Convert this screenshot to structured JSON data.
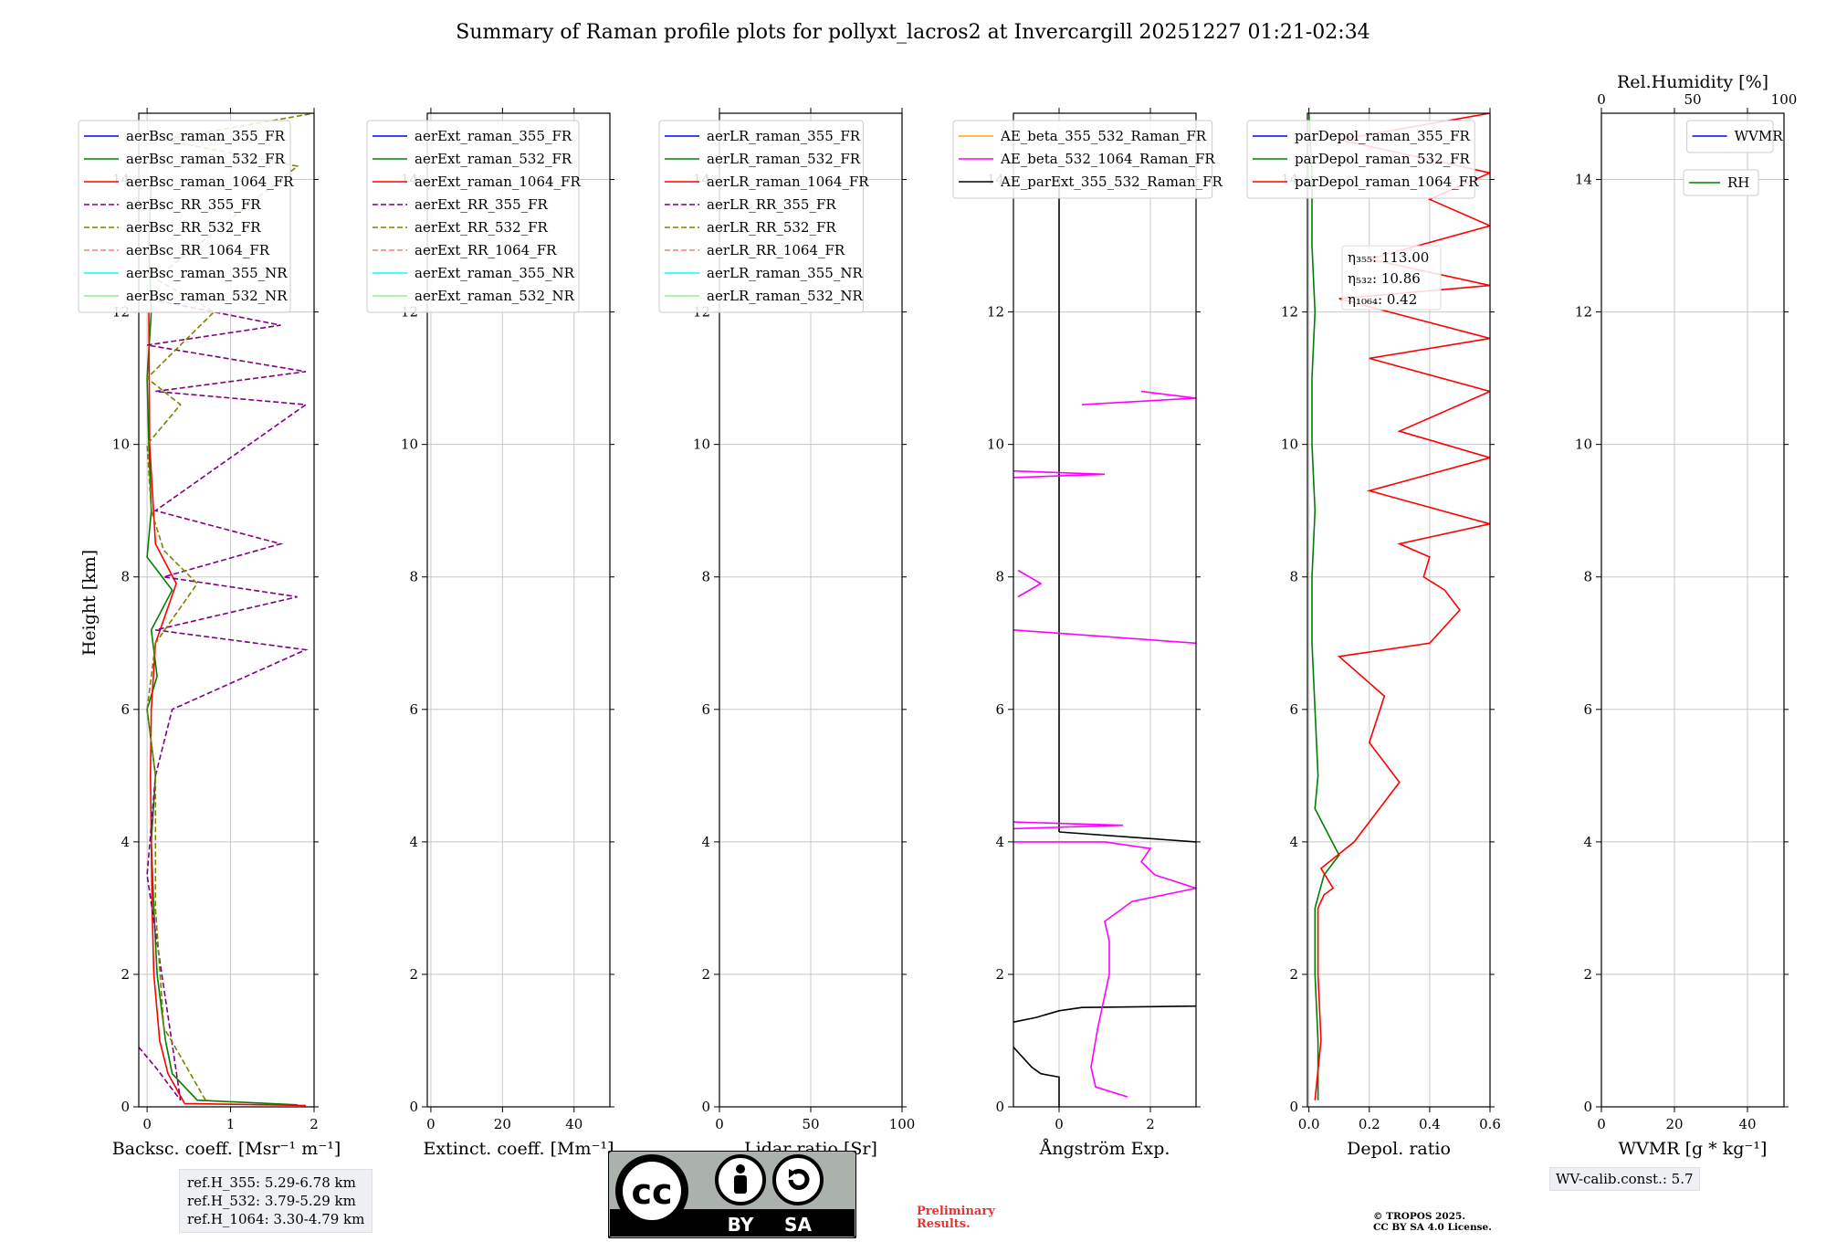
{
  "title": "Summary of Raman profile plots for pollyxt_lacros2 at Invercargill 20251227 01:21-02:34",
  "ylabel": "Height [km]",
  "colors": {
    "blue": "#0000ff",
    "green": "#008000",
    "red": "#ff0000",
    "purple": "#800080",
    "olive": "#808000",
    "salmon": "#fa8072",
    "cyan": "#00ffff",
    "lightgreen": "#90ee90",
    "orange": "#ffa500",
    "magenta": "#ff00ff",
    "black": "#000000"
  },
  "chart_data": [
    {
      "type": "line",
      "name": "backscatter",
      "xlabel": "Backsc. coeff. [Msr⁻¹ m⁻¹]",
      "xlim": [
        -0.1,
        2
      ],
      "ylim": [
        0,
        15
      ],
      "xticks": [
        {
          "v": 0,
          "label": "0"
        },
        {
          "v": 1,
          "label": "1"
        },
        {
          "v": 2,
          "label": "2"
        }
      ],
      "legend": [
        "aerBsc_raman_355_FR",
        "aerBsc_raman_532_FR",
        "aerBsc_raman_1064_FR",
        "aerBsc_RR_355_FR",
        "aerBsc_RR_532_FR",
        "aerBsc_RR_1064_FR",
        "aerBsc_raman_355_NR",
        "aerBsc_raman_532_NR"
      ],
      "legend_colors": [
        "blue",
        "green",
        "red",
        "purple",
        "olive",
        "salmon",
        "cyan",
        "lightgreen"
      ],
      "legend_dashed": [
        false,
        false,
        false,
        true,
        true,
        true,
        false,
        false
      ],
      "legend_position": "top-right",
      "series": [
        {
          "name": "aerBsc_raman_532_FR",
          "color": "green",
          "points": [
            [
              1.8,
              0.03
            ],
            [
              0.6,
              0.1
            ],
            [
              0.3,
              0.5
            ],
            [
              0.22,
              1.0
            ],
            [
              0.12,
              2.0
            ],
            [
              0.08,
              3.0
            ],
            [
              0.05,
              4.0
            ],
            [
              0.1,
              5.0
            ],
            [
              0.0,
              6.0
            ],
            [
              0.12,
              6.5
            ],
            [
              0.05,
              7.2
            ],
            [
              0.3,
              7.8
            ],
            [
              0.0,
              8.3
            ],
            [
              0.05,
              9.0
            ],
            [
              0.02,
              10.0
            ],
            [
              0.0,
              11.0
            ],
            [
              0.05,
              12.0
            ],
            [
              0.02,
              13.0
            ],
            [
              0.05,
              14.0
            ]
          ]
        },
        {
          "name": "aerBsc_raman_1064_FR",
          "color": "red",
          "points": [
            [
              1.9,
              0.02
            ],
            [
              0.45,
              0.05
            ],
            [
              0.25,
              0.5
            ],
            [
              0.15,
              1.0
            ],
            [
              0.08,
              2.0
            ],
            [
              0.06,
              3.0
            ],
            [
              0.05,
              4.0
            ],
            [
              0.04,
              5.0
            ],
            [
              0.05,
              6.0
            ],
            [
              0.1,
              7.0
            ],
            [
              0.35,
              7.9
            ],
            [
              0.1,
              8.5
            ],
            [
              0.03,
              10.0
            ],
            [
              0.02,
              12.0
            ]
          ]
        },
        {
          "name": "aerBsc_RR_355_FR",
          "color": "purple",
          "dashed": true,
          "points": [
            [
              -0.1,
              0.9
            ],
            [
              0.1,
              0.6
            ],
            [
              0.4,
              0.1
            ],
            [
              0.0,
              3.5
            ],
            [
              0.1,
              5.0
            ],
            [
              0.3,
              6.0
            ],
            [
              1.9,
              6.9
            ],
            [
              0.1,
              7.2
            ],
            [
              1.8,
              7.7
            ],
            [
              0.2,
              8.0
            ],
            [
              1.6,
              8.5
            ],
            [
              0.1,
              9.0
            ],
            [
              1.9,
              10.6
            ],
            [
              0.1,
              10.8
            ],
            [
              1.9,
              11.1
            ],
            [
              0.0,
              11.5
            ],
            [
              1.6,
              11.8
            ],
            [
              0.0,
              12.2
            ]
          ]
        },
        {
          "name": "aerBsc_RR_532_FR",
          "color": "olive",
          "dashed": true,
          "points": [
            [
              0.7,
              0.1
            ],
            [
              0.2,
              1.2
            ],
            [
              0.1,
              3.0
            ],
            [
              0.1,
              5.0
            ],
            [
              0.0,
              6.0
            ],
            [
              0.1,
              7.0
            ],
            [
              0.6,
              7.9
            ],
            [
              0.2,
              8.4
            ],
            [
              0.05,
              9.0
            ],
            [
              0.0,
              10.0
            ],
            [
              0.4,
              10.6
            ],
            [
              0.0,
              11.0
            ],
            [
              0.8,
              12.0
            ],
            [
              0.1,
              12.5
            ],
            [
              1.8,
              14.2
            ],
            [
              0.2,
              14.6
            ],
            [
              2.0,
              15.0
            ]
          ]
        }
      ]
    },
    {
      "type": "line",
      "name": "extinction",
      "xlabel": "Extinct. coeff. [Mm⁻¹]",
      "xlim": [
        -1,
        50
      ],
      "ylim": [
        0,
        15
      ],
      "xticks": [
        {
          "v": 0,
          "label": "0"
        },
        {
          "v": 20,
          "label": "20"
        },
        {
          "v": 40,
          "label": "40"
        }
      ],
      "legend": [
        "aerExt_raman_355_FR",
        "aerExt_raman_532_FR",
        "aerExt_raman_1064_FR",
        "aerExt_RR_355_FR",
        "aerExt_RR_532_FR",
        "aerExt_RR_1064_FR",
        "aerExt_raman_355_NR",
        "aerExt_raman_532_NR"
      ],
      "legend_colors": [
        "blue",
        "green",
        "red",
        "purple",
        "olive",
        "salmon",
        "cyan",
        "lightgreen"
      ],
      "legend_dashed": [
        false,
        false,
        false,
        true,
        true,
        true,
        false,
        false
      ],
      "legend_position": "top-right",
      "series": []
    },
    {
      "type": "line",
      "name": "lidar_ratio",
      "xlabel": "Lidar ratio [Sr]",
      "xlim": [
        0,
        100
      ],
      "ylim": [
        0,
        15
      ],
      "xticks": [
        {
          "v": 0,
          "label": "0"
        },
        {
          "v": 50,
          "label": "50"
        },
        {
          "v": 100,
          "label": "100"
        }
      ],
      "legend": [
        "aerLR_raman_355_FR",
        "aerLR_raman_532_FR",
        "aerLR_raman_1064_FR",
        "aerLR_RR_355_FR",
        "aerLR_RR_532_FR",
        "aerLR_RR_1064_FR",
        "aerLR_raman_355_NR",
        "aerLR_raman_532_NR"
      ],
      "legend_colors": [
        "blue",
        "green",
        "red",
        "purple",
        "olive",
        "salmon",
        "cyan",
        "lightgreen"
      ],
      "legend_dashed": [
        false,
        false,
        false,
        true,
        true,
        true,
        false,
        false
      ],
      "legend_position": "top-right",
      "series": []
    },
    {
      "type": "line",
      "name": "angstrom",
      "xlabel": "Ångström Exp.",
      "xlim": [
        -1,
        3
      ],
      "ylim": [
        0,
        15
      ],
      "xticks": [
        {
          "v": 0,
          "label": "0"
        },
        {
          "v": 2,
          "label": "2"
        }
      ],
      "legend": [
        "AE_beta_355_532_Raman_FR",
        "AE_beta_532_1064_Raman_FR",
        "AE_parExt_355_532_Raman_FR"
      ],
      "legend_colors": [
        "orange",
        "magenta",
        "black"
      ],
      "legend_dashed": [
        false,
        false,
        false
      ],
      "legend_position": "top-right",
      "series": [
        {
          "name": "AE_parExt_355_532_Raman_FR",
          "color": "black",
          "points": [
            [
              -1,
              0.9
            ],
            [
              -0.6,
              0.6
            ],
            [
              -0.4,
              0.5
            ],
            [
              0,
              0.45
            ],
            [
              0,
              0
            ],
            [
              0,
              0.45
            ]
          ]
        },
        {
          "name": "AE_parExt_355_532_Raman_FR_b",
          "color": "black",
          "points": [
            [
              -1,
              1.28
            ],
            [
              -0.5,
              1.35
            ],
            [
              0,
              1.45
            ],
            [
              0.5,
              1.5
            ],
            [
              3,
              1.52
            ]
          ]
        },
        {
          "name": "AE_parExt_355_532_Raman_FR_c",
          "color": "black",
          "points": [
            [
              0,
              4.15
            ],
            [
              3,
              4.0
            ]
          ]
        },
        {
          "name": "AE_parExt_355_532_Raman_FR_d",
          "color": "black",
          "points": [
            [
              0,
              4.15
            ],
            [
              0,
              14.0
            ]
          ]
        },
        {
          "name": "AE_beta_532_1064_Raman_FR",
          "color": "magenta",
          "points": [
            [
              1.5,
              0.15
            ],
            [
              0.8,
              0.3
            ],
            [
              0.7,
              0.6
            ],
            [
              0.85,
              1.2
            ],
            [
              1.1,
              2.0
            ],
            [
              1.1,
              2.5
            ],
            [
              1.0,
              2.8
            ],
            [
              1.6,
              3.1
            ],
            [
              3.0,
              3.3
            ],
            [
              2.1,
              3.5
            ],
            [
              1.8,
              3.7
            ],
            [
              2.0,
              3.9
            ],
            [
              1.0,
              4.0
            ],
            [
              -1,
              4.0
            ]
          ]
        },
        {
          "name": "AE_beta_532_1064_Raman_FR_b",
          "color": "magenta",
          "points": [
            [
              -1,
              4.2
            ],
            [
              1.4,
              4.25
            ],
            [
              -1,
              4.3
            ]
          ]
        },
        {
          "name": "AE_beta_532_1064_Raman_FR_c",
          "color": "magenta",
          "points": [
            [
              -1,
              7.2
            ],
            [
              3,
              7.0
            ]
          ]
        },
        {
          "name": "AE_beta_532_1064_Raman_FR_d",
          "color": "magenta",
          "points": [
            [
              -0.9,
              7.7
            ],
            [
              -0.4,
              7.9
            ],
            [
              -0.9,
              8.1
            ]
          ]
        },
        {
          "name": "AE_beta_532_1064_Raman_FR_e",
          "color": "magenta",
          "points": [
            [
              -1,
              9.5
            ],
            [
              1.0,
              9.55
            ],
            [
              -1,
              9.6
            ]
          ]
        },
        {
          "name": "AE_beta_532_1064_Raman_FR_f",
          "color": "magenta",
          "points": [
            [
              0.5,
              10.6
            ],
            [
              3.0,
              10.7
            ],
            [
              1.8,
              10.8
            ]
          ]
        }
      ]
    },
    {
      "type": "line",
      "name": "depol",
      "xlabel": "Depol. ratio",
      "xlim": [
        -0.005,
        0.6
      ],
      "ylim": [
        0,
        15
      ],
      "xticks": [
        {
          "v": 0,
          "label": "0.0"
        },
        {
          "v": 0.2,
          "label": "0.2"
        },
        {
          "v": 0.4,
          "label": "0.4"
        },
        {
          "v": 0.6,
          "label": "0.6"
        }
      ],
      "legend": [
        "parDepol_raman_355_FR",
        "parDepol_raman_532_FR",
        "parDepol_raman_1064_FR"
      ],
      "legend_colors": [
        "blue",
        "green",
        "red"
      ],
      "legend_dashed": [
        false,
        false,
        false
      ],
      "legend_position": "top-right",
      "eta_lines": [
        "η₃₅₅: 113.00",
        "η₅₃₂: 10.86",
        "η₁₀₆₄: 0.42"
      ],
      "series": [
        {
          "name": "parDepol_raman_532_FR",
          "color": "green",
          "points": [
            [
              0.03,
              0.1
            ],
            [
              0.03,
              1.0
            ],
            [
              0.02,
              2.0
            ],
            [
              0.02,
              3.0
            ],
            [
              0.05,
              3.5
            ],
            [
              0.1,
              3.8
            ],
            [
              0.02,
              4.5
            ],
            [
              0.03,
              5.0
            ],
            [
              0.02,
              6.0
            ],
            [
              0.01,
              7.0
            ],
            [
              0.01,
              8.0
            ],
            [
              0.02,
              9.0
            ],
            [
              0.01,
              10.0
            ],
            [
              0.01,
              11.0
            ],
            [
              0.02,
              12.0
            ],
            [
              0.01,
              13.0
            ],
            [
              0.01,
              14.0
            ],
            [
              0.0,
              15.0
            ]
          ]
        },
        {
          "name": "parDepol_raman_1064_FR",
          "color": "red",
          "points": [
            [
              0.02,
              0.1
            ],
            [
              0.04,
              1.0
            ],
            [
              0.03,
              2.0
            ],
            [
              0.03,
              3.0
            ],
            [
              0.05,
              3.2
            ],
            [
              0.08,
              3.3
            ],
            [
              0.04,
              3.6
            ],
            [
              0.15,
              4.0
            ],
            [
              0.3,
              4.9
            ],
            [
              0.2,
              5.5
            ],
            [
              0.25,
              6.2
            ],
            [
              0.1,
              6.8
            ],
            [
              0.4,
              7.0
            ],
            [
              0.5,
              7.5
            ],
            [
              0.45,
              7.8
            ],
            [
              0.38,
              8.0
            ],
            [
              0.4,
              8.3
            ],
            [
              0.3,
              8.5
            ],
            [
              0.6,
              8.8
            ],
            [
              0.2,
              9.3
            ],
            [
              0.6,
              9.8
            ],
            [
              0.3,
              10.2
            ],
            [
              0.6,
              10.8
            ],
            [
              0.2,
              11.3
            ],
            [
              0.6,
              11.6
            ],
            [
              0.1,
              12.2
            ],
            [
              0.6,
              12.4
            ],
            [
              0.2,
              12.8
            ],
            [
              0.6,
              13.3
            ],
            [
              0.4,
              13.7
            ],
            [
              0.6,
              14.1
            ],
            [
              0.1,
              14.6
            ],
            [
              0.6,
              15.0
            ]
          ]
        }
      ]
    },
    {
      "type": "line",
      "name": "wvmr",
      "xlabel": "WVMR [g * kg⁻¹]",
      "top_xlabel": "Rel.Humidity [%]",
      "xlim": [
        0,
        50
      ],
      "ylim": [
        0,
        15
      ],
      "xticks": [
        {
          "v": 0,
          "label": "0"
        },
        {
          "v": 20,
          "label": "20"
        },
        {
          "v": 40,
          "label": "40"
        }
      ],
      "top_xticks": [
        {
          "v": 0,
          "label": "0"
        },
        {
          "v": 25,
          "label": "50"
        },
        {
          "v": 50,
          "label": "100"
        }
      ],
      "legend": [
        "WVMR"
      ],
      "legend_colors": [
        "blue"
      ],
      "legend2": [
        "RH"
      ],
      "legend2_colors": [
        "green"
      ],
      "legend_position": "top-right",
      "series": []
    }
  ],
  "ref_heights": [
    "ref.H_355: 5.29-6.78 km",
    "ref.H_532: 3.79-5.29 km",
    "ref.H_1064: 3.30-4.79 km"
  ],
  "wv_calib": "WV-calib.const.: 5.7",
  "preliminary": [
    "Preliminary",
    "Results."
  ],
  "copyright": [
    "© TROPOS 2025.",
    "CC BY SA 4.0 License."
  ],
  "license_logo": {
    "cc": "cc",
    "by": "BY",
    "sa": "SA"
  }
}
